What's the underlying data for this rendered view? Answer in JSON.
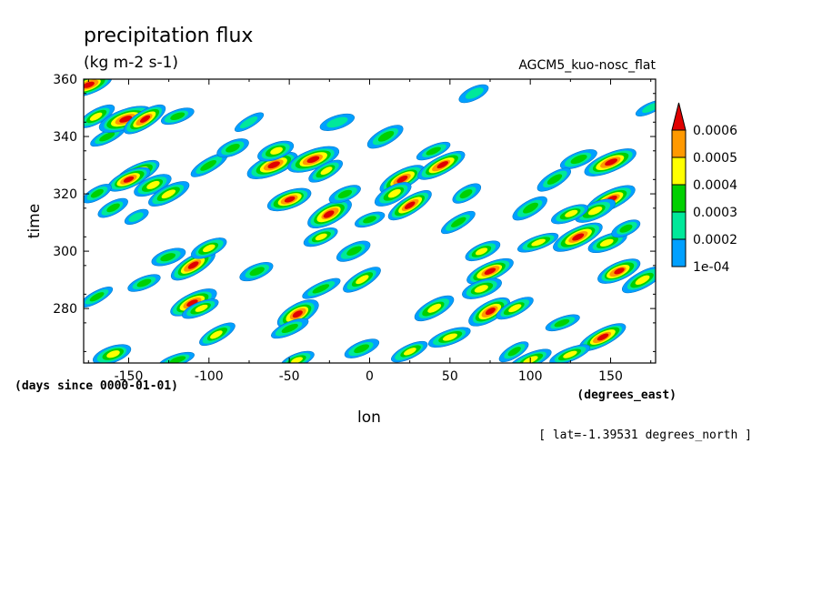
{
  "chart_data": {
    "type": "heatmap",
    "title": "precipitation flux",
    "units": "(kg m-2 s-1)",
    "model": "AGCM5_kuo-nosc_flat",
    "xlabel": "lon",
    "xunits": "(degrees_east)",
    "ylabel": "time",
    "yunits": "(days since 0000-01-01)",
    "annotation": "[ lat=-1.39531 degrees_north ]",
    "xlim": [
      -178,
      178
    ],
    "ylim": [
      261,
      360
    ],
    "x_ticks": [
      -150,
      -100,
      -50,
      0,
      50,
      100,
      150
    ],
    "x_tick_labels": [
      "-150",
      "-100",
      "-50",
      "0",
      "50",
      "100",
      "150"
    ],
    "y_ticks": [
      280,
      300,
      320,
      340,
      360
    ],
    "y_tick_labels": [
      "280",
      "300",
      "320",
      "340",
      "360"
    ],
    "colorbar": {
      "levels": [
        0.0001,
        0.0002,
        0.0003,
        0.0004,
        0.0005,
        0.0006
      ],
      "labels": [
        "1e-04",
        "0.0002",
        "0.0003",
        "0.0004",
        "0.0005",
        "0.0006"
      ],
      "colors": [
        "#00a0ff",
        "#00e89a",
        "#00d000",
        "#ffff00",
        "#ff9900",
        "#e00000"
      ]
    },
    "features": [
      {
        "lon": -175,
        "time": 358,
        "value": 0.0006
      },
      {
        "lon": -170,
        "time": 347,
        "value": 0.0004
      },
      {
        "lon": -163,
        "time": 340,
        "value": 0.0003
      },
      {
        "lon": -152,
        "time": 346,
        "value": 0.0006
      },
      {
        "lon": -140,
        "time": 346,
        "value": 0.0006
      },
      {
        "lon": -120,
        "time": 347,
        "value": 0.0003
      },
      {
        "lon": -145,
        "time": 327,
        "value": 0.0006
      },
      {
        "lon": -150,
        "time": 325,
        "value": 0.0006
      },
      {
        "lon": -135,
        "time": 323,
        "value": 0.0004
      },
      {
        "lon": -170,
        "time": 320,
        "value": 0.0003
      },
      {
        "lon": -125,
        "time": 320,
        "value": 0.0004
      },
      {
        "lon": -160,
        "time": 315,
        "value": 0.0003
      },
      {
        "lon": -145,
        "time": 312,
        "value": 0.0002
      },
      {
        "lon": -100,
        "time": 330,
        "value": 0.0003
      },
      {
        "lon": -60,
        "time": 330,
        "value": 0.0006
      },
      {
        "lon": -58,
        "time": 335,
        "value": 0.0004
      },
      {
        "lon": -35,
        "time": 332,
        "value": 0.0006
      },
      {
        "lon": -27,
        "time": 328,
        "value": 0.0004
      },
      {
        "lon": -50,
        "time": 318,
        "value": 0.0006
      },
      {
        "lon": -25,
        "time": 313,
        "value": 0.0006
      },
      {
        "lon": -30,
        "time": 305,
        "value": 0.0004
      },
      {
        "lon": -10,
        "time": 300,
        "value": 0.0003
      },
      {
        "lon": -5,
        "time": 290,
        "value": 0.0004
      },
      {
        "lon": 20,
        "time": 325,
        "value": 0.0006
      },
      {
        "lon": 25,
        "time": 316,
        "value": 0.0006
      },
      {
        "lon": 15,
        "time": 320,
        "value": 0.0004
      },
      {
        "lon": 45,
        "time": 330,
        "value": 0.0006
      },
      {
        "lon": 40,
        "time": 335,
        "value": 0.0003
      },
      {
        "lon": 55,
        "time": 310,
        "value": 0.0003
      },
      {
        "lon": 70,
        "time": 300,
        "value": 0.0004
      },
      {
        "lon": 75,
        "time": 293,
        "value": 0.0006
      },
      {
        "lon": 70,
        "time": 287,
        "value": 0.0004
      },
      {
        "lon": 75,
        "time": 279,
        "value": 0.0006
      },
      {
        "lon": 90,
        "time": 280,
        "value": 0.0004
      },
      {
        "lon": 50,
        "time": 270,
        "value": 0.0004
      },
      {
        "lon": 100,
        "time": 262,
        "value": 0.0004
      },
      {
        "lon": 130,
        "time": 332,
        "value": 0.0003
      },
      {
        "lon": 150,
        "time": 331,
        "value": 0.0006
      },
      {
        "lon": 150,
        "time": 318,
        "value": 0.0006
      },
      {
        "lon": 140,
        "time": 314,
        "value": 0.0004
      },
      {
        "lon": 125,
        "time": 313,
        "value": 0.0004
      },
      {
        "lon": 130,
        "time": 305,
        "value": 0.0006
      },
      {
        "lon": 148,
        "time": 303,
        "value": 0.0004
      },
      {
        "lon": 160,
        "time": 308,
        "value": 0.0003
      },
      {
        "lon": 155,
        "time": 293,
        "value": 0.0006
      },
      {
        "lon": 170,
        "time": 290,
        "value": 0.0004
      },
      {
        "lon": 145,
        "time": 270,
        "value": 0.0006
      },
      {
        "lon": 125,
        "time": 264,
        "value": 0.0004
      },
      {
        "lon": -110,
        "time": 282,
        "value": 0.0006
      },
      {
        "lon": -105,
        "time": 280,
        "value": 0.0004
      },
      {
        "lon": -110,
        "time": 295,
        "value": 0.0006
      },
      {
        "lon": -100,
        "time": 301,
        "value": 0.0004
      },
      {
        "lon": -95,
        "time": 271,
        "value": 0.0004
      },
      {
        "lon": -125,
        "time": 298,
        "value": 0.0003
      },
      {
        "lon": -70,
        "time": 293,
        "value": 0.0003
      },
      {
        "lon": -170,
        "time": 284,
        "value": 0.0003
      },
      {
        "lon": -45,
        "time": 278,
        "value": 0.0006
      },
      {
        "lon": -50,
        "time": 273,
        "value": 0.0003
      },
      {
        "lon": -5,
        "time": 266,
        "value": 0.0003
      },
      {
        "lon": 25,
        "time": 265,
        "value": 0.0004
      },
      {
        "lon": 90,
        "time": 265,
        "value": 0.0003
      },
      {
        "lon": -160,
        "time": 264,
        "value": 0.0004
      },
      {
        "lon": -120,
        "time": 262,
        "value": 0.0003
      },
      {
        "lon": -45,
        "time": 262,
        "value": 0.0004
      },
      {
        "lon": 175,
        "time": 350,
        "value": 0.0002
      },
      {
        "lon": 115,
        "time": 325,
        "value": 0.0003
      },
      {
        "lon": 105,
        "time": 303,
        "value": 0.0004
      },
      {
        "lon": 100,
        "time": 315,
        "value": 0.0003
      },
      {
        "lon": -85,
        "time": 336,
        "value": 0.0003
      },
      {
        "lon": -20,
        "time": 345,
        "value": 0.0002
      },
      {
        "lon": 10,
        "time": 340,
        "value": 0.0003
      },
      {
        "lon": 65,
        "time": 355,
        "value": 0.0002
      },
      {
        "lon": 40,
        "time": 280,
        "value": 0.0004
      },
      {
        "lon": -30,
        "time": 287,
        "value": 0.0003
      },
      {
        "lon": -140,
        "time": 289,
        "value": 0.0003
      },
      {
        "lon": -15,
        "time": 320,
        "value": 0.0003
      },
      {
        "lon": 0,
        "time": 311,
        "value": 0.0003
      },
      {
        "lon": 60,
        "time": 320,
        "value": 0.0003
      },
      {
        "lon": -75,
        "time": 345,
        "value": 0.0002
      },
      {
        "lon": 120,
        "time": 275,
        "value": 0.0003
      }
    ]
  }
}
